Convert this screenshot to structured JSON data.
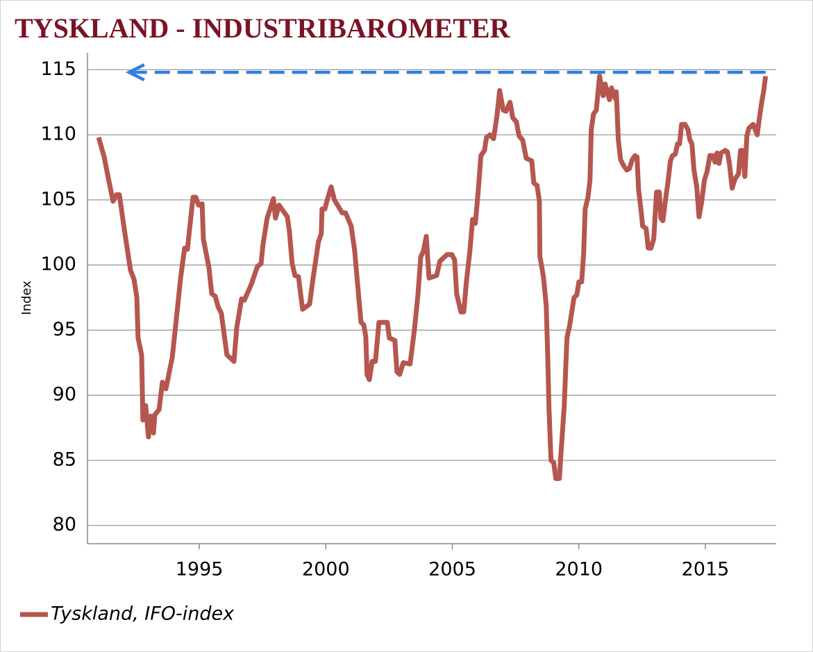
{
  "chart_data": {
    "type": "line",
    "title": "TYSKLAND - INDUSTRIBAROMETER",
    "ylabel": "Index",
    "xlim": [
      1990.58,
      2017.8
    ],
    "ylim": [
      78.6,
      116.3
    ],
    "xticks": [
      1995,
      2000,
      2005,
      2010,
      2015
    ],
    "yticks": [
      80,
      85,
      90,
      95,
      100,
      105,
      110,
      115
    ],
    "grid": true,
    "legend": "bottom-left",
    "x": [
      1991.02,
      1991.24,
      1991.4,
      1991.59,
      1991.73,
      1991.84,
      1992.03,
      1992.28,
      1992.42,
      1992.53,
      1992.58,
      1992.72,
      1992.77,
      1992.88,
      1992.99,
      1993.08,
      1993.19,
      1993.24,
      1993.41,
      1993.54,
      1993.68,
      1993.93,
      1994.09,
      1994.26,
      1994.42,
      1994.53,
      1994.75,
      1994.86,
      1994.97,
      1995.11,
      1995.16,
      1995.38,
      1995.49,
      1995.63,
      1995.74,
      1995.87,
      1996.09,
      1996.37,
      1996.48,
      1996.67,
      1996.78,
      1997.05,
      1997.3,
      1997.44,
      1997.52,
      1997.68,
      1997.93,
      1998.01,
      1998.15,
      1998.48,
      1998.56,
      1998.67,
      1998.78,
      1998.92,
      1999.08,
      1999.36,
      1999.49,
      1999.71,
      1999.82,
      1999.85,
      1999.96,
      2000.07,
      2000.21,
      2000.34,
      2000.65,
      2000.78,
      2001.0,
      2001.14,
      2001.28,
      2001.39,
      2001.5,
      2001.58,
      2001.63,
      2001.72,
      2001.83,
      2001.96,
      2002.1,
      2002.43,
      2002.51,
      2002.73,
      2002.81,
      2002.92,
      2003.06,
      2003.33,
      2003.5,
      2003.64,
      2003.75,
      2003.86,
      2003.97,
      2004.08,
      2004.38,
      2004.51,
      2004.79,
      2004.98,
      2005.09,
      2005.17,
      2005.34,
      2005.45,
      2005.56,
      2005.69,
      2005.8,
      2005.91,
      2006.02,
      2006.13,
      2006.27,
      2006.35,
      2006.49,
      2006.63,
      2006.76,
      2006.87,
      2007.01,
      2007.12,
      2007.28,
      2007.39,
      2007.53,
      2007.64,
      2007.78,
      2007.92,
      2008.14,
      2008.22,
      2008.35,
      2008.44,
      2008.46,
      2008.6,
      2008.71,
      2008.77,
      2008.82,
      2008.9,
      2009.01,
      2009.09,
      2009.23,
      2009.31,
      2009.42,
      2009.53,
      2009.64,
      2009.81,
      2009.92,
      2010.0,
      2010.11,
      2010.19,
      2010.25,
      2010.36,
      2010.44,
      2010.49,
      2010.58,
      2010.69,
      2010.74,
      2010.82,
      2010.96,
      2011.04,
      2011.21,
      2011.29,
      2011.43,
      2011.48,
      2011.56,
      2011.65,
      2011.78,
      2011.89,
      2012.0,
      2012.11,
      2012.22,
      2012.3,
      2012.36,
      2012.47,
      2012.52,
      2012.66,
      2012.74,
      2012.85,
      2012.96,
      2013.07,
      2013.18,
      2013.24,
      2013.32,
      2013.43,
      2013.51,
      2013.62,
      2013.7,
      2013.81,
      2013.9,
      2013.98,
      2014.06,
      2014.2,
      2014.31,
      2014.39,
      2014.47,
      2014.55,
      2014.66,
      2014.75,
      2014.85,
      2014.96,
      2015.07,
      2015.18,
      2015.29,
      2015.38,
      2015.46,
      2015.54,
      2015.62,
      2015.79,
      2015.87,
      2015.95,
      2016.06,
      2016.17,
      2016.31,
      2016.39,
      2016.47,
      2016.56,
      2016.64,
      2016.72,
      2016.89,
      2016.97,
      2017.05,
      2017.13,
      2017.21,
      2017.3,
      2017.38
    ],
    "series": [
      {
        "name": "Tyskland, IFO-index",
        "color": "#b5564f",
        "values": [
          109.8,
          108.3,
          106.7,
          104.9,
          105.4,
          105.4,
          102.8,
          99.6,
          98.9,
          97.5,
          94.4,
          93.1,
          88.1,
          89.2,
          86.8,
          88.4,
          87.1,
          88.5,
          88.9,
          91.0,
          90.5,
          92.9,
          95.8,
          99.0,
          101.3,
          101.2,
          105.2,
          105.2,
          104.6,
          104.7,
          102.0,
          99.8,
          97.8,
          97.6,
          96.8,
          96.3,
          93.1,
          92.6,
          95.2,
          97.4,
          97.3,
          98.5,
          99.9,
          100.1,
          101.6,
          103.6,
          105.1,
          103.6,
          104.6,
          103.7,
          102.6,
          100.1,
          99.2,
          99.1,
          96.6,
          97.0,
          98.9,
          101.8,
          102.4,
          104.3,
          104.3,
          105.1,
          106.0,
          105.0,
          104.0,
          104.0,
          103.0,
          101.1,
          98.0,
          95.6,
          95.4,
          94.5,
          91.6,
          91.2,
          92.6,
          92.6,
          95.6,
          95.6,
          94.4,
          94.2,
          91.8,
          91.6,
          92.5,
          92.4,
          95.0,
          97.7,
          100.6,
          101.1,
          102.2,
          99.0,
          99.2,
          100.3,
          100.8,
          100.8,
          100.4,
          97.8,
          96.4,
          96.4,
          98.8,
          101.0,
          103.5,
          103.2,
          105.6,
          108.4,
          108.8,
          109.8,
          110.0,
          109.7,
          111.4,
          113.4,
          111.9,
          111.8,
          112.5,
          111.3,
          111.0,
          109.9,
          109.6,
          108.2,
          108.0,
          106.3,
          106.1,
          104.9,
          100.7,
          99.1,
          96.9,
          93.0,
          89.0,
          85.0,
          84.8,
          83.6,
          83.6,
          86.0,
          89.1,
          94.4,
          95.4,
          97.5,
          97.7,
          98.7,
          98.7,
          100.9,
          104.3,
          105.2,
          106.5,
          110.4,
          111.6,
          111.9,
          112.9,
          114.5,
          113.0,
          113.9,
          112.7,
          113.6,
          112.8,
          113.3,
          109.6,
          108.1,
          107.6,
          107.3,
          107.4,
          108.1,
          108.4,
          108.3,
          105.8,
          104.0,
          103.0,
          102.8,
          101.3,
          101.3,
          102.0,
          105.6,
          105.6,
          103.6,
          103.4,
          105.1,
          106.2,
          108.0,
          108.4,
          108.5,
          109.3,
          109.3,
          110.8,
          110.8,
          110.4,
          109.6,
          109.3,
          107.3,
          106.0,
          103.7,
          104.8,
          106.5,
          107.2,
          108.4,
          108.4,
          107.9,
          108.6,
          107.8,
          108.6,
          108.8,
          108.7,
          107.8,
          105.9,
          106.6,
          107.0,
          108.8,
          108.8,
          106.8,
          109.9,
          110.5,
          110.8,
          110.4,
          110.0,
          111.2,
          112.3,
          113.3,
          114.5
        ]
      }
    ],
    "annotations": [
      {
        "type": "arrow",
        "x": [
          2017.38,
          1992.22
        ],
        "y": 114.8,
        "color": "#2f7fe0"
      }
    ]
  }
}
